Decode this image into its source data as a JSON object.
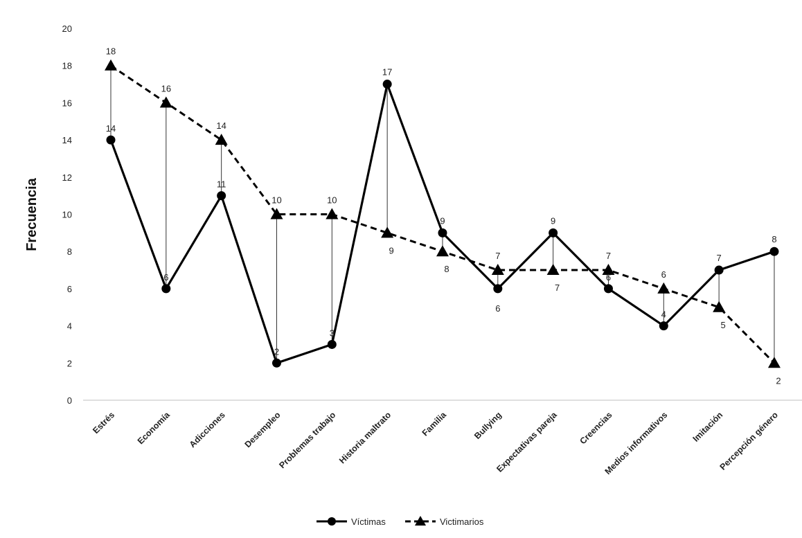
{
  "chart_data": {
    "type": "line",
    "title": "",
    "xlabel": "",
    "ylabel": "Frecuencia",
    "ylim": [
      0,
      20
    ],
    "yticks": [
      0,
      2,
      4,
      6,
      8,
      10,
      12,
      14,
      16,
      18,
      20
    ],
    "categories": [
      "Estrés",
      "Economía",
      "Adicciones",
      "Desempleo",
      "Problemas trabajo",
      "Historia maltrato",
      "Familia",
      "Bullying",
      "Expectativas pareja",
      "Creencias",
      "Medios informativos",
      "Imitación",
      "Percepción género"
    ],
    "series": [
      {
        "name": "Víctimas",
        "marker": "circle",
        "line": "solid",
        "values": [
          14,
          6,
          11,
          2,
          3,
          17,
          9,
          6,
          9,
          6,
          4,
          7,
          8
        ]
      },
      {
        "name": "Victimarios",
        "marker": "triangle",
        "line": "dashed",
        "values": [
          18,
          16,
          14,
          10,
          10,
          9,
          8,
          7,
          7,
          7,
          6,
          5,
          2
        ]
      }
    ],
    "high_low_lines": true,
    "legend_position": "bottom",
    "colors": {
      "line": "#000000",
      "axis": "#bfbfbf"
    }
  }
}
